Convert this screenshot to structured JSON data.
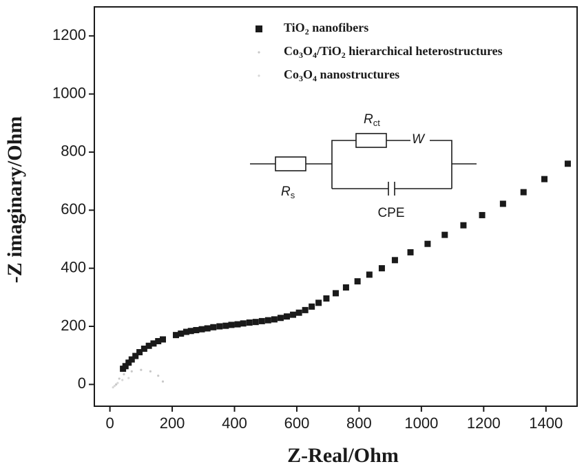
{
  "chart_data": {
    "type": "scatter",
    "xlabel": "Z-Real/Ohm",
    "ylabel": "-Z imaginary/Ohm",
    "xlim": [
      -50,
      1500
    ],
    "ylim": [
      -75,
      1300
    ],
    "xticks": [
      0,
      200,
      400,
      600,
      800,
      1000,
      1200,
      1400
    ],
    "yticks": [
      0,
      200,
      400,
      600,
      800,
      1000,
      1200
    ],
    "legend": "top-center",
    "series": [
      {
        "name": "TiO2 nanofibers",
        "color": "#1a1a1a",
        "marker": "square",
        "x": [
          42,
          50,
          60,
          70,
          82,
          95,
          110,
          125,
          140,
          155,
          170,
          212,
          228,
          245,
          260,
          277,
          295,
          313,
          332,
          352,
          372,
          390,
          410,
          428,
          448,
          468,
          488,
          508,
          528,
          548,
          568,
          588,
          607,
          627,
          648,
          670,
          695,
          725,
          758,
          795,
          833,
          873,
          915,
          965,
          1020,
          1075,
          1135,
          1195,
          1262,
          1328,
          1395,
          1470
        ],
        "values": [
          54,
          63,
          75,
          86,
          98,
          111,
          123,
          133,
          141,
          149,
          155,
          170,
          175,
          181,
          184,
          187,
          190,
          193,
          197,
          200,
          202,
          205,
          207,
          210,
          213,
          215,
          218,
          221,
          224,
          229,
          234,
          240,
          247,
          256,
          268,
          281,
          296,
          314,
          334,
          355,
          378,
          400,
          428,
          455,
          484,
          515,
          548,
          583,
          622,
          662,
          707,
          760
        ]
      },
      {
        "name": "Co3O4/TiO2 hierarchical heterostructures",
        "color": "#c8c8c8",
        "marker": "dot",
        "x": [
          20,
          30,
          45,
          70,
          100,
          130,
          155,
          170
        ],
        "values": [
          0,
          20,
          35,
          45,
          50,
          45,
          30,
          10
        ]
      },
      {
        "name": "Co3O4 nanostructures",
        "color": "#d8d8d8",
        "marker": "dot",
        "x": [
          10,
          15,
          25,
          40,
          60
        ],
        "values": [
          -10,
          -5,
          5,
          15,
          22
        ]
      }
    ]
  },
  "inset": {
    "labels": [
      "Rct",
      "W",
      "Rs",
      "CPE"
    ]
  }
}
